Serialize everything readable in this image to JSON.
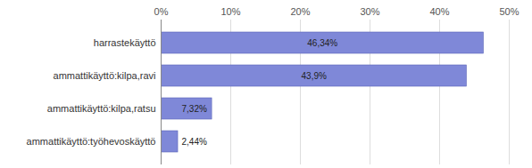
{
  "chart_data": {
    "type": "bar",
    "orientation": "horizontal",
    "categories": [
      "harrastekäyttö",
      "ammattikäyttö:kilpa,ravi",
      "ammattikäyttö:kilpa,ratsu",
      "ammattikäyttö:työhevoskäyttö"
    ],
    "values": [
      46.34,
      43.9,
      7.32,
      2.44
    ],
    "value_labels": [
      "46,34%",
      "43,9%",
      "7,32%",
      "2,44%"
    ],
    "data_labels": true,
    "color": "#7f88d8",
    "xlim": [
      0,
      50
    ],
    "xticks": [
      {
        "value": 0,
        "label": "0%"
      },
      {
        "value": 10,
        "label": "10%"
      },
      {
        "value": 20,
        "label": "20%"
      },
      {
        "value": 30,
        "label": "30%"
      },
      {
        "value": 40,
        "label": "40%"
      },
      {
        "value": 50,
        "label": "50%"
      }
    ],
    "grid": true
  }
}
